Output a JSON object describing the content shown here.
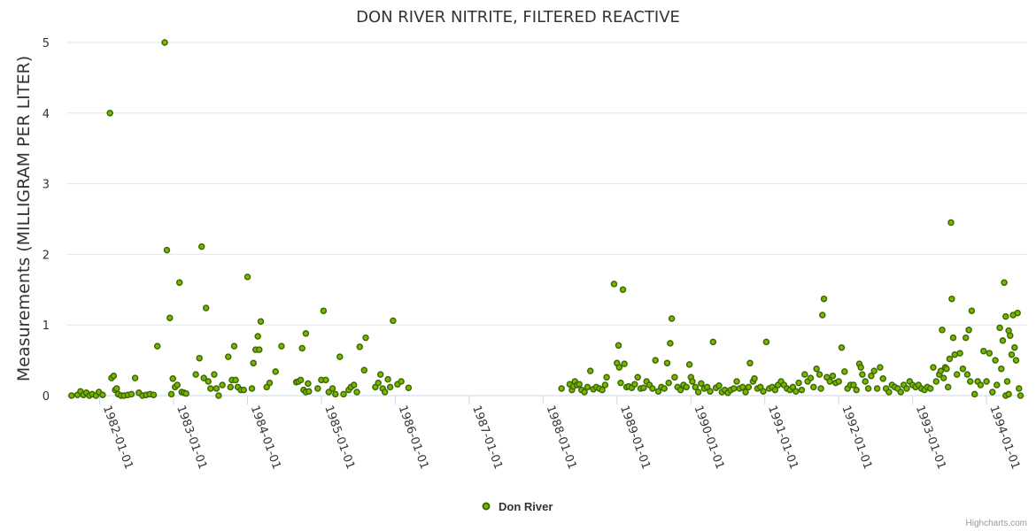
{
  "chart_data": {
    "type": "scatter",
    "title": "DON RIVER NITRITE, FILTERED REACTIVE",
    "ylabel": "Measurements (MILLIGRAM PER LITER)",
    "xlabel": "",
    "ylim": [
      0,
      5
    ],
    "yticks": [
      "0",
      "1",
      "2",
      "3",
      "4",
      "5"
    ],
    "xlim": [
      1981.55,
      1994.55
    ],
    "xticks": [
      {
        "label": "1982-01-01",
        "value": 1982.0
      },
      {
        "label": "1983-01-01",
        "value": 1983.0
      },
      {
        "label": "1984-01-01",
        "value": 1984.0
      },
      {
        "label": "1985-01-01",
        "value": 1985.0
      },
      {
        "label": "1986-01-01",
        "value": 1986.0
      },
      {
        "label": "1987-01-01",
        "value": 1987.0
      },
      {
        "label": "1988-01-01",
        "value": 1988.0
      },
      {
        "label": "1989-01-01",
        "value": 1989.0
      },
      {
        "label": "1990-01-01",
        "value": 1990.0
      },
      {
        "label": "1991-01-01",
        "value": 1991.0
      },
      {
        "label": "1992-01-01",
        "value": 1992.0
      },
      {
        "label": "1993-01-01",
        "value": 1993.0
      },
      {
        "label": "1994-01-01",
        "value": 1994.0
      }
    ],
    "legend": {
      "position": "bottom-center"
    },
    "series": [
      {
        "name": "Don River",
        "color": "#7cb500",
        "points": [
          [
            1981.62,
            0.0
          ],
          [
            1981.7,
            0.01
          ],
          [
            1981.74,
            0.06
          ],
          [
            1981.78,
            0.01
          ],
          [
            1981.82,
            0.04
          ],
          [
            1981.86,
            0.0
          ],
          [
            1981.9,
            0.02
          ],
          [
            1981.95,
            0.0
          ],
          [
            1981.99,
            0.05
          ],
          [
            1982.04,
            0.01
          ],
          [
            1982.14,
            4.0
          ],
          [
            1982.16,
            0.25
          ],
          [
            1982.19,
            0.28
          ],
          [
            1982.21,
            0.08
          ],
          [
            1982.23,
            0.1
          ],
          [
            1982.25,
            0.02
          ],
          [
            1982.29,
            0.0
          ],
          [
            1982.33,
            0.0
          ],
          [
            1982.38,
            0.01
          ],
          [
            1982.43,
            0.02
          ],
          [
            1982.48,
            0.25
          ],
          [
            1982.53,
            0.04
          ],
          [
            1982.58,
            0.0
          ],
          [
            1982.63,
            0.01
          ],
          [
            1982.68,
            0.02
          ],
          [
            1982.73,
            0.01
          ],
          [
            1982.78,
            0.7
          ],
          [
            1982.88,
            5.0
          ],
          [
            1982.91,
            2.06
          ],
          [
            1982.95,
            1.1
          ],
          [
            1982.99,
            0.24
          ],
          [
            1983.02,
            0.12
          ],
          [
            1983.05,
            0.15
          ],
          [
            1983.08,
            1.6
          ],
          [
            1983.11,
            0.05
          ],
          [
            1983.14,
            0.04
          ],
          [
            1983.17,
            0.03
          ],
          [
            1982.97,
            0.02
          ],
          [
            1983.3,
            0.3
          ],
          [
            1983.35,
            0.53
          ],
          [
            1983.38,
            2.11
          ],
          [
            1983.41,
            0.25
          ],
          [
            1983.44,
            1.24
          ],
          [
            1983.47,
            0.2
          ],
          [
            1983.5,
            0.1
          ],
          [
            1983.55,
            0.3
          ],
          [
            1983.58,
            0.1
          ],
          [
            1983.61,
            0.0
          ],
          [
            1983.66,
            0.15
          ],
          [
            1983.74,
            0.55
          ],
          [
            1983.77,
            0.12
          ],
          [
            1983.79,
            0.22
          ],
          [
            1983.82,
            0.7
          ],
          [
            1983.84,
            0.22
          ],
          [
            1983.87,
            0.12
          ],
          [
            1983.91,
            0.08
          ],
          [
            1983.95,
            0.08
          ],
          [
            1984.0,
            1.68
          ],
          [
            1984.06,
            0.1
          ],
          [
            1984.08,
            0.46
          ],
          [
            1984.11,
            0.65
          ],
          [
            1984.14,
            0.84
          ],
          [
            1984.16,
            0.65
          ],
          [
            1984.18,
            1.05
          ],
          [
            1984.26,
            0.12
          ],
          [
            1984.3,
            0.18
          ],
          [
            1984.38,
            0.34
          ],
          [
            1984.46,
            0.7
          ],
          [
            1984.66,
            0.19
          ],
          [
            1984.69,
            0.2
          ],
          [
            1984.72,
            0.22
          ],
          [
            1984.74,
            0.67
          ],
          [
            1984.76,
            0.08
          ],
          [
            1984.79,
            0.88
          ],
          [
            1984.82,
            0.17
          ],
          [
            1984.79,
            0.05
          ],
          [
            1984.83,
            0.06
          ],
          [
            1984.95,
            0.1
          ],
          [
            1985.0,
            0.22
          ],
          [
            1985.03,
            1.2
          ],
          [
            1985.06,
            0.22
          ],
          [
            1985.1,
            0.05
          ],
          [
            1985.15,
            0.1
          ],
          [
            1985.19,
            0.02
          ],
          [
            1985.25,
            0.55
          ],
          [
            1985.3,
            0.02
          ],
          [
            1985.37,
            0.08
          ],
          [
            1985.4,
            0.12
          ],
          [
            1985.44,
            0.15
          ],
          [
            1985.48,
            0.05
          ],
          [
            1985.52,
            0.69
          ],
          [
            1985.58,
            0.36
          ],
          [
            1985.6,
            0.82
          ],
          [
            1985.73,
            0.12
          ],
          [
            1985.77,
            0.18
          ],
          [
            1985.8,
            0.3
          ],
          [
            1985.83,
            0.1
          ],
          [
            1985.86,
            0.05
          ],
          [
            1985.9,
            0.23
          ],
          [
            1985.93,
            0.12
          ],
          [
            1985.97,
            1.06
          ],
          [
            1986.03,
            0.16
          ],
          [
            1986.08,
            0.2
          ],
          [
            1986.18,
            0.11
          ],
          [
            1988.25,
            0.1
          ],
          [
            1988.36,
            0.16
          ],
          [
            1988.39,
            0.08
          ],
          [
            1988.41,
            0.13
          ],
          [
            1988.43,
            0.2
          ],
          [
            1988.46,
            0.15
          ],
          [
            1988.49,
            0.16
          ],
          [
            1988.52,
            0.08
          ],
          [
            1988.56,
            0.05
          ],
          [
            1988.6,
            0.12
          ],
          [
            1988.64,
            0.35
          ],
          [
            1988.68,
            0.09
          ],
          [
            1988.72,
            0.12
          ],
          [
            1988.76,
            0.1
          ],
          [
            1988.8,
            0.08
          ],
          [
            1988.84,
            0.15
          ],
          [
            1988.86,
            0.26
          ],
          [
            1988.96,
            1.58
          ],
          [
            1989.0,
            0.46
          ],
          [
            1989.02,
            0.71
          ],
          [
            1989.03,
            0.4
          ],
          [
            1989.05,
            0.18
          ],
          [
            1989.08,
            1.5
          ],
          [
            1989.1,
            0.45
          ],
          [
            1989.13,
            0.12
          ],
          [
            1989.16,
            0.13
          ],
          [
            1989.2,
            0.11
          ],
          [
            1989.24,
            0.16
          ],
          [
            1989.28,
            0.26
          ],
          [
            1989.32,
            0.1
          ],
          [
            1989.36,
            0.11
          ],
          [
            1989.4,
            0.2
          ],
          [
            1989.44,
            0.15
          ],
          [
            1989.48,
            0.1
          ],
          [
            1989.52,
            0.5
          ],
          [
            1989.56,
            0.06
          ],
          [
            1989.6,
            0.12
          ],
          [
            1989.64,
            0.1
          ],
          [
            1989.68,
            0.46
          ],
          [
            1989.7,
            0.18
          ],
          [
            1989.72,
            0.74
          ],
          [
            1989.74,
            1.09
          ],
          [
            1989.78,
            0.26
          ],
          [
            1989.82,
            0.12
          ],
          [
            1989.86,
            0.08
          ],
          [
            1989.9,
            0.15
          ],
          [
            1989.94,
            0.12
          ],
          [
            1989.98,
            0.44
          ],
          [
            1990.0,
            0.26
          ],
          [
            1990.02,
            0.2
          ],
          [
            1990.06,
            0.12
          ],
          [
            1990.1,
            0.05
          ],
          [
            1990.14,
            0.17
          ],
          [
            1990.18,
            0.1
          ],
          [
            1990.22,
            0.12
          ],
          [
            1990.26,
            0.06
          ],
          [
            1990.3,
            0.76
          ],
          [
            1990.34,
            0.11
          ],
          [
            1990.38,
            0.14
          ],
          [
            1990.42,
            0.05
          ],
          [
            1990.46,
            0.08
          ],
          [
            1990.5,
            0.04
          ],
          [
            1990.54,
            0.08
          ],
          [
            1990.58,
            0.1
          ],
          [
            1990.62,
            0.2
          ],
          [
            1990.66,
            0.1
          ],
          [
            1990.7,
            0.12
          ],
          [
            1990.74,
            0.05
          ],
          [
            1990.78,
            0.12
          ],
          [
            1990.8,
            0.46
          ],
          [
            1990.84,
            0.2
          ],
          [
            1990.86,
            0.24
          ],
          [
            1990.9,
            0.1
          ],
          [
            1990.94,
            0.12
          ],
          [
            1990.98,
            0.06
          ],
          [
            1991.02,
            0.76
          ],
          [
            1991.06,
            0.1
          ],
          [
            1991.1,
            0.12
          ],
          [
            1991.14,
            0.08
          ],
          [
            1991.18,
            0.15
          ],
          [
            1991.22,
            0.2
          ],
          [
            1991.26,
            0.15
          ],
          [
            1991.3,
            0.1
          ],
          [
            1991.34,
            0.08
          ],
          [
            1991.38,
            0.12
          ],
          [
            1991.42,
            0.06
          ],
          [
            1991.46,
            0.18
          ],
          [
            1991.5,
            0.08
          ],
          [
            1991.54,
            0.3
          ],
          [
            1991.58,
            0.2
          ],
          [
            1991.62,
            0.25
          ],
          [
            1991.66,
            0.12
          ],
          [
            1991.7,
            0.38
          ],
          [
            1991.74,
            0.3
          ],
          [
            1991.76,
            0.1
          ],
          [
            1991.78,
            1.14
          ],
          [
            1991.8,
            1.37
          ],
          [
            1991.84,
            0.26
          ],
          [
            1991.88,
            0.2
          ],
          [
            1991.92,
            0.28
          ],
          [
            1991.96,
            0.18
          ],
          [
            1992.0,
            0.2
          ],
          [
            1992.04,
            0.68
          ],
          [
            1992.08,
            0.34
          ],
          [
            1992.12,
            0.1
          ],
          [
            1992.16,
            0.15
          ],
          [
            1992.2,
            0.15
          ],
          [
            1992.24,
            0.08
          ],
          [
            1992.28,
            0.45
          ],
          [
            1992.3,
            0.4
          ],
          [
            1992.32,
            0.3
          ],
          [
            1992.36,
            0.2
          ],
          [
            1992.4,
            0.1
          ],
          [
            1992.44,
            0.28
          ],
          [
            1992.48,
            0.35
          ],
          [
            1992.52,
            0.1
          ],
          [
            1992.56,
            0.4
          ],
          [
            1992.6,
            0.24
          ],
          [
            1992.64,
            0.1
          ],
          [
            1992.68,
            0.05
          ],
          [
            1992.72,
            0.15
          ],
          [
            1992.76,
            0.12
          ],
          [
            1992.8,
            0.1
          ],
          [
            1992.84,
            0.05
          ],
          [
            1992.88,
            0.15
          ],
          [
            1992.92,
            0.1
          ],
          [
            1992.96,
            0.2
          ],
          [
            1993.0,
            0.15
          ],
          [
            1993.04,
            0.12
          ],
          [
            1993.08,
            0.15
          ],
          [
            1993.12,
            0.1
          ],
          [
            1993.16,
            0.08
          ],
          [
            1993.2,
            0.12
          ],
          [
            1993.24,
            0.1
          ],
          [
            1993.28,
            0.4
          ],
          [
            1993.32,
            0.2
          ],
          [
            1993.36,
            0.3
          ],
          [
            1993.38,
            0.35
          ],
          [
            1993.4,
            0.93
          ],
          [
            1993.42,
            0.25
          ],
          [
            1993.44,
            0.4
          ],
          [
            1993.46,
            0.38
          ],
          [
            1993.48,
            0.12
          ],
          [
            1993.5,
            0.52
          ],
          [
            1993.52,
            2.45
          ],
          [
            1993.53,
            1.37
          ],
          [
            1993.55,
            0.82
          ],
          [
            1993.57,
            0.58
          ],
          [
            1993.6,
            0.3
          ],
          [
            1993.64,
            0.6
          ],
          [
            1993.68,
            0.38
          ],
          [
            1993.72,
            0.82
          ],
          [
            1993.74,
            0.3
          ],
          [
            1993.76,
            0.93
          ],
          [
            1993.78,
            0.2
          ],
          [
            1993.8,
            1.2
          ],
          [
            1993.84,
            0.02
          ],
          [
            1993.88,
            0.2
          ],
          [
            1993.92,
            0.15
          ],
          [
            1993.96,
            0.63
          ],
          [
            1994.0,
            0.2
          ],
          [
            1994.04,
            0.6
          ],
          [
            1994.08,
            0.05
          ],
          [
            1994.12,
            0.5
          ],
          [
            1994.14,
            0.15
          ],
          [
            1994.18,
            0.96
          ],
          [
            1994.2,
            0.38
          ],
          [
            1994.22,
            0.78
          ],
          [
            1994.24,
            1.6
          ],
          [
            1994.26,
            1.12
          ],
          [
            1994.28,
            0.2
          ],
          [
            1994.3,
            0.92
          ],
          [
            1994.32,
            0.85
          ],
          [
            1994.34,
            0.58
          ],
          [
            1994.36,
            1.14
          ],
          [
            1994.38,
            0.68
          ],
          [
            1994.4,
            0.5
          ],
          [
            1994.42,
            1.17
          ],
          [
            1994.44,
            0.1
          ],
          [
            1994.46,
            0.0
          ],
          [
            1994.26,
            0.0
          ],
          [
            1994.3,
            0.02
          ]
        ]
      }
    ]
  },
  "credits": "Highcharts.com"
}
